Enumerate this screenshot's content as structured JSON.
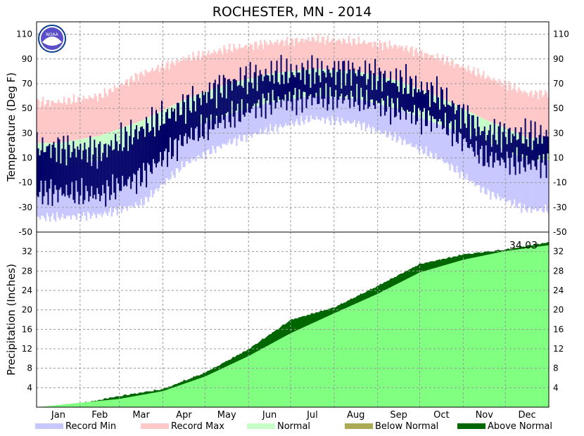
{
  "chart_data": [
    {
      "type": "area",
      "title": "ROCHESTER, MN - 2014",
      "ylabel": "Temperature (Deg F)",
      "ylim": [
        -50,
        120
      ],
      "yticks": [
        110,
        90,
        70,
        50,
        30,
        10,
        -10,
        -30,
        -50
      ],
      "months": [
        "Jan",
        "Feb",
        "Mar",
        "Apr",
        "May",
        "Jun",
        "Jul",
        "Aug",
        "Sep",
        "Oct",
        "Nov",
        "Dec"
      ],
      "grid": true,
      "series": [
        {
          "name": "Record Max",
          "color": "#ffc8c8",
          "monthly_values": [
            55,
            60,
            78,
            90,
            98,
            103,
            106,
            104,
            100,
            90,
            76,
            62
          ]
        },
        {
          "name": "Normal",
          "color": "#c8ffc8",
          "monthly_values_high": [
            22,
            28,
            40,
            57,
            70,
            78,
            82,
            80,
            72,
            58,
            41,
            26
          ],
          "monthly_values_low": [
            3,
            8,
            20,
            33,
            45,
            55,
            60,
            58,
            49,
            36,
            23,
            8
          ]
        },
        {
          "name": "Record Min",
          "color": "#c8c8ff",
          "monthly_values": [
            -38,
            -36,
            -27,
            5,
            22,
            33,
            42,
            38,
            25,
            8,
            -17,
            -32
          ]
        },
        {
          "name": "Observed",
          "color": "#000066",
          "monthly_values_high": [
            18,
            15,
            33,
            52,
            70,
            78,
            80,
            80,
            72,
            60,
            30,
            28
          ],
          "monthly_values_low": [
            -18,
            -20,
            -5,
            25,
            42,
            55,
            58,
            58,
            48,
            38,
            10,
            5
          ]
        }
      ]
    },
    {
      "type": "area",
      "ylabel": "Precipitation (Inches)",
      "ylim": [
        0,
        36
      ],
      "yticks": [
        32,
        28,
        24,
        20,
        16,
        12,
        8,
        4
      ],
      "months": [
        "Jan",
        "Feb",
        "Mar",
        "Apr",
        "May",
        "Jun",
        "Jul",
        "Aug",
        "Sep",
        "Oct",
        "Nov",
        "Dec"
      ],
      "annotation": "34.03",
      "grid": true,
      "series": [
        {
          "name": "Normal",
          "color": "#80ff80",
          "values_at_month_start": [
            0,
            0.9,
            1.7,
            3.3,
            6.3,
            10.5,
            15.2,
            19.3,
            23.3,
            27.7,
            30.3,
            32.1
          ],
          "end_value": 33.3
        },
        {
          "name": "Observed",
          "color": "#006600",
          "values_at_month_start": [
            0.0,
            0.8,
            2.4,
            3.8,
            7.2,
            12.0,
            18.0,
            20.6,
            25.0,
            29.5,
            31.5,
            32.5
          ],
          "end_value": 34.03
        }
      ]
    }
  ],
  "legend": {
    "items": [
      {
        "label": "Record Min",
        "color": "#c8c8ff"
      },
      {
        "label": "Record Max",
        "color": "#ffc8c8"
      },
      {
        "label": "Normal",
        "color": "#c8ffc8"
      },
      {
        "label": "Below Normal",
        "color": "#aaaa55"
      },
      {
        "label": "Above Normal",
        "color": "#006600"
      }
    ]
  }
}
